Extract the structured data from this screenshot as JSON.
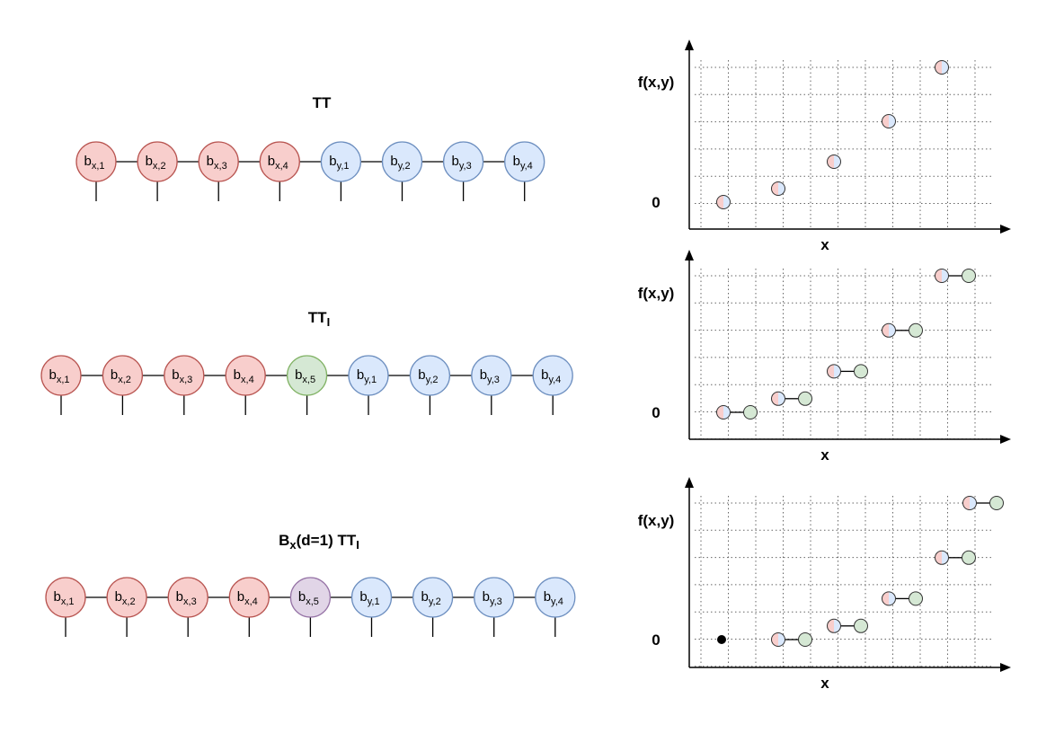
{
  "colors": {
    "x_fill": "#f8cecc",
    "x_stroke": "#b85450",
    "y_fill": "#dae8fc",
    "y_stroke": "#6c8ebf",
    "green_fill": "#d5e8d4",
    "green_stroke": "#82b366",
    "purple_fill": "#e1d5e7",
    "purple_stroke": "#9673a6"
  },
  "chains": [
    {
      "title": {
        "main": "TT",
        "sub": ""
      },
      "nodes": [
        {
          "base": "b",
          "sub": "x,1",
          "kind": "x"
        },
        {
          "base": "b",
          "sub": "x,2",
          "kind": "x"
        },
        {
          "base": "b",
          "sub": "x,3",
          "kind": "x"
        },
        {
          "base": "b",
          "sub": "x,4",
          "kind": "x"
        },
        {
          "base": "b",
          "sub": "y,1",
          "kind": "y"
        },
        {
          "base": "b",
          "sub": "y,2",
          "kind": "y"
        },
        {
          "base": "b",
          "sub": "y,3",
          "kind": "y"
        },
        {
          "base": "b",
          "sub": "y,4",
          "kind": "y"
        }
      ]
    },
    {
      "title": {
        "main": "TT",
        "sub": "I"
      },
      "nodes": [
        {
          "base": "b",
          "sub": "x,1",
          "kind": "x"
        },
        {
          "base": "b",
          "sub": "x,2",
          "kind": "x"
        },
        {
          "base": "b",
          "sub": "x,3",
          "kind": "x"
        },
        {
          "base": "b",
          "sub": "x,4",
          "kind": "x"
        },
        {
          "base": "b",
          "sub": "x,5",
          "kind": "green"
        },
        {
          "base": "b",
          "sub": "y,1",
          "kind": "y"
        },
        {
          "base": "b",
          "sub": "y,2",
          "kind": "y"
        },
        {
          "base": "b",
          "sub": "y,3",
          "kind": "y"
        },
        {
          "base": "b",
          "sub": "y,4",
          "kind": "y"
        }
      ]
    },
    {
      "title": {
        "pre": "B",
        "pre_sub": "x",
        "mid": "(d=1)  TT",
        "sub": "I"
      },
      "nodes": [
        {
          "base": "b",
          "sub": "x,1",
          "kind": "x"
        },
        {
          "base": "b",
          "sub": "x,2",
          "kind": "x"
        },
        {
          "base": "b",
          "sub": "x,3",
          "kind": "x"
        },
        {
          "base": "b",
          "sub": "x,4",
          "kind": "x"
        },
        {
          "base": "b",
          "sub": "x,5",
          "kind": "purple"
        },
        {
          "base": "b",
          "sub": "y,1",
          "kind": "y"
        },
        {
          "base": "b",
          "sub": "y,2",
          "kind": "y"
        },
        {
          "base": "b",
          "sub": "y,3",
          "kind": "y"
        },
        {
          "base": "b",
          "sub": "y,4",
          "kind": "y"
        }
      ]
    }
  ],
  "plots": [
    {
      "ylabel": "f(x,y)",
      "xlabel": "x",
      "zero_label": "0",
      "points": [
        [
          0,
          0
        ],
        [
          1,
          0.5
        ],
        [
          2,
          1.5
        ],
        [
          3,
          3
        ],
        [
          4,
          5
        ]
      ],
      "paired": false,
      "origin_dot": false
    },
    {
      "ylabel": "f(x,y)",
      "xlabel": "x",
      "zero_label": "0",
      "points": [
        [
          0,
          0
        ],
        [
          1,
          0.5
        ],
        [
          2,
          1.5
        ],
        [
          3,
          3
        ],
        [
          4,
          5
        ]
      ],
      "paired": true,
      "origin_dot": false
    },
    {
      "ylabel": "f(x,y)",
      "xlabel": "x",
      "zero_label": "0",
      "points": [
        [
          1,
          0
        ],
        [
          2,
          0.5
        ],
        [
          3,
          1.5
        ],
        [
          4,
          3
        ],
        [
          5,
          5
        ]
      ],
      "paired": true,
      "origin_dot": true
    }
  ]
}
